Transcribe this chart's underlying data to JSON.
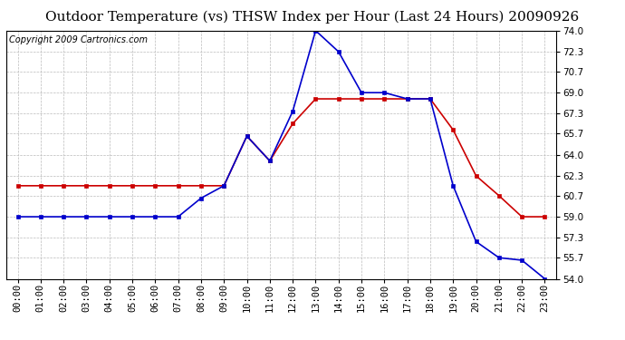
{
  "title": "Outdoor Temperature (vs) THSW Index per Hour (Last 24 Hours) 20090926",
  "copyright": "Copyright 2009 Cartronics.com",
  "hours": [
    "00:00",
    "01:00",
    "02:00",
    "03:00",
    "04:00",
    "05:00",
    "06:00",
    "07:00",
    "08:00",
    "09:00",
    "10:00",
    "11:00",
    "12:00",
    "13:00",
    "14:00",
    "15:00",
    "16:00",
    "17:00",
    "18:00",
    "19:00",
    "20:00",
    "21:00",
    "22:00",
    "23:00"
  ],
  "temp": [
    61.5,
    61.5,
    61.5,
    61.5,
    61.5,
    61.5,
    61.5,
    61.5,
    61.5,
    61.5,
    65.5,
    63.5,
    66.5,
    68.5,
    68.5,
    68.5,
    68.5,
    68.5,
    68.5,
    66.0,
    62.3,
    60.7,
    59.0,
    59.0
  ],
  "thsw": [
    59.0,
    59.0,
    59.0,
    59.0,
    59.0,
    59.0,
    59.0,
    59.0,
    60.5,
    61.5,
    65.5,
    63.5,
    67.5,
    74.0,
    72.3,
    69.0,
    69.0,
    68.5,
    68.5,
    61.5,
    57.0,
    55.7,
    55.5,
    54.0
  ],
  "temp_color": "#cc0000",
  "thsw_color": "#0000cc",
  "bg_color": "#ffffff",
  "grid_color": "#bbbbbb",
  "ylim_min": 54.0,
  "ylim_max": 74.0,
  "yticks": [
    54.0,
    55.7,
    57.3,
    59.0,
    60.7,
    62.3,
    64.0,
    65.7,
    67.3,
    69.0,
    70.7,
    72.3,
    74.0
  ],
  "title_fontsize": 11,
  "tick_fontsize": 7.5,
  "copyright_fontsize": 7,
  "marker": "s",
  "markersize": 3.5,
  "linewidth": 1.2
}
